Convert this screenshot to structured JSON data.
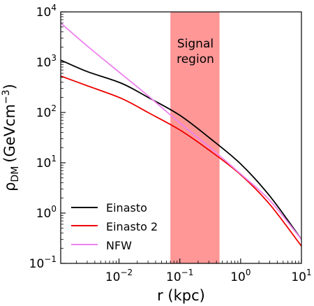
{
  "chart_data": {
    "type": "line",
    "xlabel": "r (kpc)",
    "ylabel": "ρDM (GeVcm⁻³)",
    "ylabel_parts": {
      "symbol": "ρ",
      "subscript": "DM",
      "unit": "(GeVcm",
      "exponent": "−3",
      "close": ")"
    },
    "x_scale": "log",
    "y_scale": "log",
    "xlim": [
      0.0011,
      10
    ],
    "ylim": [
      0.1,
      10000
    ],
    "x_ticks": [
      {
        "value": 0.01,
        "base": "10",
        "exp": "−2"
      },
      {
        "value": 0.1,
        "base": "10",
        "exp": "−1"
      },
      {
        "value": 1,
        "base": "10",
        "exp": "0"
      },
      {
        "value": 10,
        "base": "10",
        "exp": "1"
      }
    ],
    "y_ticks": [
      {
        "value": 0.1,
        "base": "10",
        "exp": "−1"
      },
      {
        "value": 1,
        "base": "10",
        "exp": "0"
      },
      {
        "value": 10,
        "base": "10",
        "exp": "1"
      },
      {
        "value": 100,
        "base": "10",
        "exp": "2"
      },
      {
        "value": 1000,
        "base": "10",
        "exp": "3"
      },
      {
        "value": 10000,
        "base": "10",
        "exp": "4"
      }
    ],
    "grid": false,
    "legend_placement": "lower-left",
    "shaded_region": {
      "x_range": [
        0.07,
        0.45
      ],
      "color": "#ff9797",
      "label_lines": [
        "Signal",
        "region"
      ]
    },
    "series": [
      {
        "name": "Einasto",
        "color": "#000000",
        "x": [
          0.0011,
          0.003,
          0.011,
          0.03,
          0.1,
          0.3,
          1,
          3,
          10
        ],
        "y": [
          1100,
          650,
          380,
          200,
          88,
          32,
          9.5,
          2.2,
          0.3
        ]
      },
      {
        "name": "Einasto 2",
        "color": "#ee0000",
        "x": [
          0.0011,
          0.003,
          0.011,
          0.03,
          0.1,
          0.3,
          1,
          3,
          10
        ],
        "y": [
          530,
          340,
          190,
          100,
          45,
          18,
          5.8,
          1.5,
          0.22
        ]
      },
      {
        "name": "NFW",
        "color": "#ee82ee",
        "x": [
          0.0011,
          0.003,
          0.011,
          0.03,
          0.1,
          0.3,
          1,
          3,
          10
        ],
        "y": [
          6000,
          2100,
          580,
          215,
          62,
          21,
          6,
          1.8,
          0.3
        ]
      }
    ]
  }
}
